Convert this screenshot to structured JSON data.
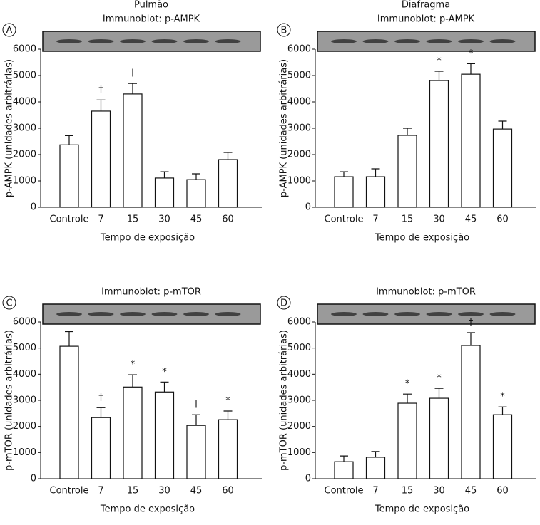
{
  "chart_data": [
    {
      "type": "bar",
      "panel": "A",
      "title": "Pulmão",
      "subtitle": "Immunoblot: p-AMPK",
      "ylabel": "p-AMPK (unidades arbitrárias)",
      "xlabel": "Tempo de exposição",
      "categories": [
        "Controle",
        "7",
        "15",
        "30",
        "45",
        "60"
      ],
      "values": [
        2370,
        3650,
        4300,
        1110,
        1050,
        1810
      ],
      "errors": [
        350,
        420,
        400,
        240,
        220,
        270
      ],
      "annotations": [
        null,
        "†",
        "†",
        null,
        null,
        null
      ],
      "color": "#ffffff",
      "ylim": [
        0,
        6000
      ],
      "yticks": [
        0,
        1000,
        2000,
        3000,
        4000,
        5000,
        6000
      ]
    },
    {
      "type": "bar",
      "panel": "B",
      "title": "Diafragma",
      "subtitle": "Immunoblot: p-AMPK",
      "ylabel": "p-AMPK (unidades arbitrárias)",
      "xlabel": "Tempo de exposição",
      "categories": [
        "Controle",
        "7",
        "15",
        "30",
        "45",
        "60"
      ],
      "values": [
        1160,
        1160,
        2730,
        4810,
        5050,
        2970
      ],
      "errors": [
        190,
        300,
        270,
        350,
        400,
        300
      ],
      "annotations": [
        null,
        null,
        null,
        "*",
        "*",
        null
      ],
      "color": "#ffffff",
      "ylim": [
        0,
        6000
      ],
      "yticks": [
        0,
        1000,
        2000,
        3000,
        4000,
        5000,
        6000
      ]
    },
    {
      "type": "bar",
      "panel": "C",
      "subtitle": "Immunoblot: p-mTOR",
      "ylabel": "p-mTOR (unidades arbitrárias)",
      "xlabel": "Tempo de exposição",
      "categories": [
        "Controle",
        "7",
        "15",
        "30",
        "45",
        "60"
      ],
      "values": [
        5070,
        2340,
        3510,
        3320,
        2040,
        2260
      ],
      "errors": [
        560,
        380,
        470,
        380,
        410,
        330
      ],
      "annotations": [
        null,
        "†",
        "*",
        "*",
        "†",
        "*"
      ],
      "color": "#ffffff",
      "ylim": [
        0,
        6000
      ],
      "yticks": [
        0,
        1000,
        2000,
        3000,
        4000,
        5000,
        6000
      ]
    },
    {
      "type": "bar",
      "panel": "D",
      "subtitle": "Immunoblot: p-mTOR",
      "ylabel": "p-mTOR (unidades arbitrárias)",
      "xlabel": "Tempo de exposição",
      "categories": [
        "Controle",
        "7",
        "15",
        "30",
        "45",
        "60"
      ],
      "values": [
        650,
        820,
        2890,
        3080,
        5100,
        2450
      ],
      "errors": [
        220,
        220,
        350,
        380,
        490,
        300
      ],
      "annotations": [
        null,
        null,
        "*",
        "*",
        "†",
        "*"
      ],
      "color": "#ffffff",
      "ylim": [
        0,
        6000
      ],
      "yticks": [
        0,
        1000,
        2000,
        3000,
        4000,
        5000,
        6000
      ]
    }
  ]
}
